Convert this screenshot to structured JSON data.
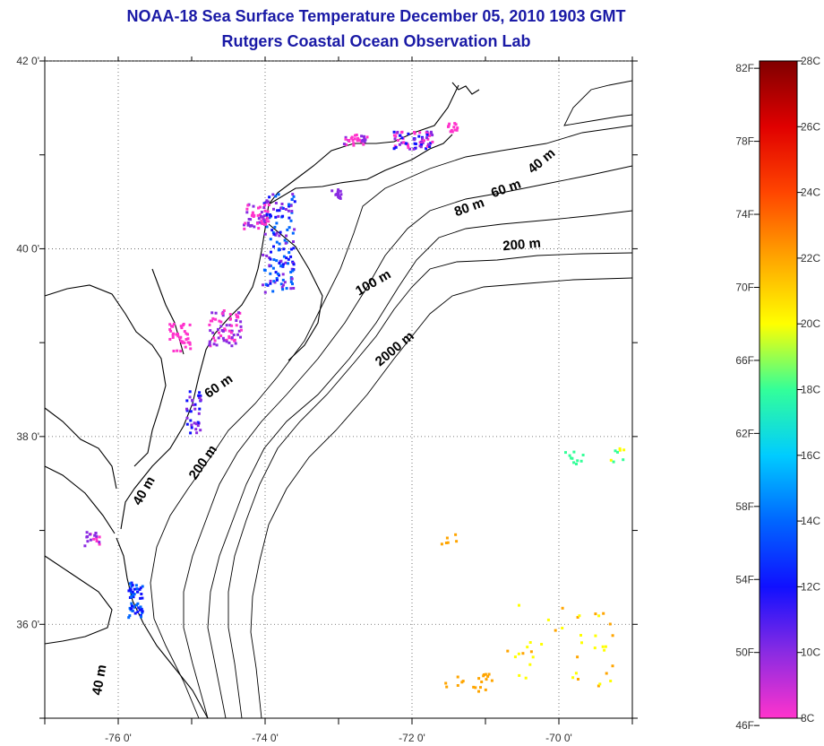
{
  "title": "NOAA-18 Sea Surface Temperature December 05, 2010 1903 GMT",
  "subtitle": "Rutgers Coastal Ocean Observation Lab",
  "map": {
    "lat_labels": [
      {
        "value": 42,
        "label": "42 0'"
      },
      {
        "value": 40,
        "label": "40 0'"
      },
      {
        "value": 38,
        "label": "38 0'"
      },
      {
        "value": 36,
        "label": "36 0'"
      }
    ],
    "lon_labels": [
      {
        "value": -76,
        "label": "-76 0'"
      },
      {
        "value": -74,
        "label": "-74 0'"
      },
      {
        "value": -72,
        "label": "-72 0'"
      },
      {
        "value": -70,
        "label": "-70 0'"
      }
    ],
    "lon_range": [
      -77.0,
      -69.0
    ],
    "lat_range": [
      35.0,
      42.0
    ],
    "grid": "dotted",
    "depth_labels": [
      {
        "text": "40 m",
        "lon": -70.2,
        "lat": 40.9,
        "rotate": -40
      },
      {
        "text": "60 m",
        "lon": -70.7,
        "lat": 40.6,
        "rotate": -20
      },
      {
        "text": "80 m",
        "lon": -71.2,
        "lat": 40.4,
        "rotate": -20
      },
      {
        "text": "200 m",
        "lon": -70.5,
        "lat": 40.0,
        "rotate": -5
      },
      {
        "text": "100 m",
        "lon": -72.5,
        "lat": 39.6,
        "rotate": -30
      },
      {
        "text": "2000 m",
        "lon": -72.2,
        "lat": 38.9,
        "rotate": -40
      },
      {
        "text": "60 m",
        "lon": -74.6,
        "lat": 38.5,
        "rotate": -35
      },
      {
        "text": "200 m",
        "lon": -74.8,
        "lat": 37.7,
        "rotate": -55
      },
      {
        "text": "40 m",
        "lon": -75.6,
        "lat": 37.4,
        "rotate": -60
      },
      {
        "text": "40 m",
        "lon": -76.2,
        "lat": 35.4,
        "rotate": -80
      }
    ]
  },
  "colorbar": {
    "fahrenheit": [
      "82F",
      "78F",
      "74F",
      "70F",
      "66F",
      "62F",
      "58F",
      "54F",
      "50F",
      "46F"
    ],
    "celsius": [
      "28C",
      "26C",
      "24C",
      "22C",
      "20C",
      "18C",
      "16C",
      "14C",
      "12C",
      "10C",
      "8C"
    ],
    "range_c": [
      8,
      28
    ],
    "colors": [
      "#ff33cc",
      "#8a2be2",
      "#1010ff",
      "#0066ff",
      "#00ccff",
      "#33ff99",
      "#ffff00",
      "#ffa500",
      "#ff4500",
      "#e00000",
      "#800000"
    ]
  }
}
